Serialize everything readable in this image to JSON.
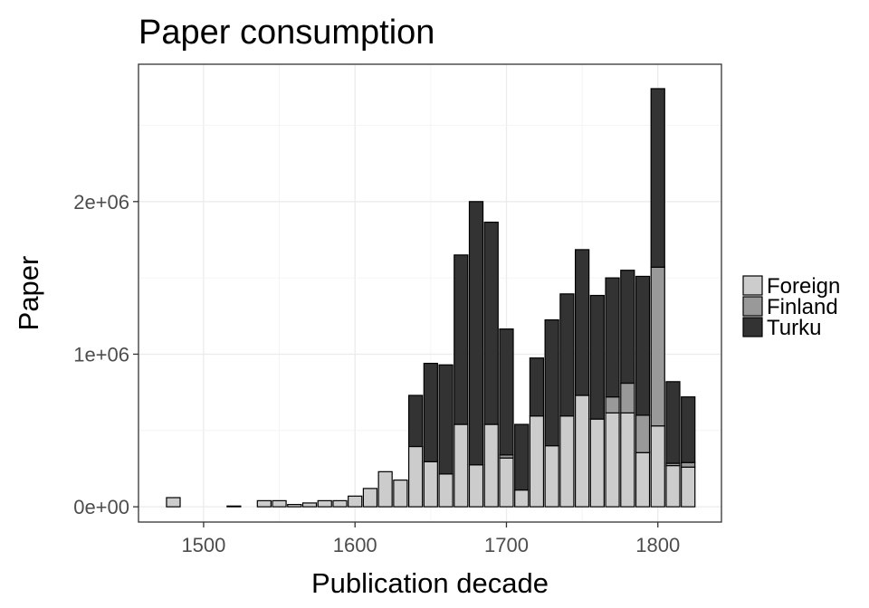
{
  "chart_data": {
    "type": "bar",
    "stacked": true,
    "title": "Paper consumption",
    "xlabel": "Publication decade",
    "ylabel": "Paper",
    "xlim": [
      1457,
      1842
    ],
    "ylim": [
      -100000,
      2900000
    ],
    "xticks": [
      1500,
      1600,
      1700,
      1800
    ],
    "yticks": [
      0,
      1000000,
      2000000
    ],
    "ytick_labels": [
      "0e+00",
      "1e+06",
      "2e+06"
    ],
    "grid": true,
    "legend_position": "right",
    "colors": {
      "Foreign": "#cccccc",
      "Finland": "#999999",
      "Turku": "#333333"
    },
    "x": [
      1480,
      1520,
      1540,
      1550,
      1560,
      1570,
      1580,
      1590,
      1600,
      1610,
      1620,
      1630,
      1640,
      1650,
      1660,
      1670,
      1680,
      1690,
      1700,
      1710,
      1720,
      1730,
      1740,
      1750,
      1760,
      1770,
      1780,
      1790,
      1800,
      1810,
      1820
    ],
    "series": [
      {
        "name": "Foreign",
        "values": [
          60000,
          5000,
          40000,
          40000,
          15000,
          25000,
          40000,
          40000,
          70000,
          120000,
          230000,
          175000,
          395000,
          295000,
          215000,
          540000,
          275000,
          540000,
          320000,
          110000,
          595000,
          400000,
          595000,
          730000,
          575000,
          615000,
          615000,
          355000,
          530000,
          270000,
          260000
        ]
      },
      {
        "name": "Finland",
        "values": [
          0,
          0,
          0,
          0,
          0,
          0,
          0,
          0,
          0,
          0,
          0,
          0,
          0,
          0,
          0,
          0,
          0,
          0,
          20000,
          0,
          0,
          0,
          0,
          0,
          0,
          105000,
          195000,
          245000,
          1040000,
          15000,
          30000
        ]
      },
      {
        "name": "Turku",
        "values": [
          0,
          0,
          0,
          0,
          0,
          0,
          0,
          0,
          0,
          0,
          0,
          0,
          335000,
          645000,
          715000,
          1110000,
          1725000,
          1325000,
          825000,
          430000,
          380000,
          825000,
          800000,
          955000,
          810000,
          780000,
          740000,
          910000,
          1170000,
          535000,
          430000
        ]
      }
    ]
  }
}
